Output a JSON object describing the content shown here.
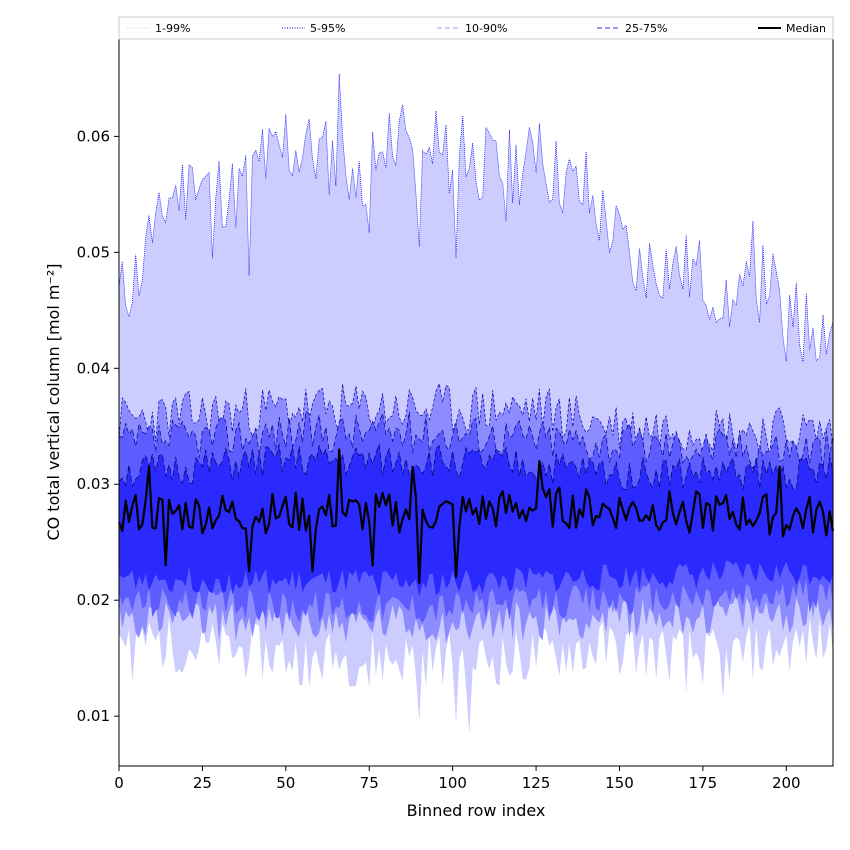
{
  "chart_data": {
    "type": "area",
    "title": "",
    "xlabel": "Binned row index",
    "ylabel": "CO total vertical column [mol m⁻²]",
    "xlim": [
      0,
      214
    ],
    "ylim": [
      0.0057,
      0.0684
    ],
    "xticks": [
      0,
      25,
      50,
      75,
      100,
      125,
      150,
      175,
      200
    ],
    "yticks": [
      0.01,
      0.02,
      0.03,
      0.04,
      0.05,
      0.06
    ],
    "ytick_labels": [
      "0.01",
      "0.02",
      "0.03",
      "0.04",
      "0.05",
      "0.06"
    ],
    "grid": false,
    "legend_position": "top",
    "legend": [
      {
        "label": "1-99%",
        "style": "dotted",
        "color": "#ccccff"
      },
      {
        "label": "5-95%",
        "style": "dotted",
        "color": "#0000aa"
      },
      {
        "label": "10-90%",
        "style": "dashed",
        "color": "#9999ff"
      },
      {
        "label": "25-75%",
        "style": "dashed",
        "color": "#3333cc"
      },
      {
        "label": "Median",
        "style": "solid",
        "color": "#000000"
      }
    ],
    "bands": [
      {
        "name": "1-99%",
        "fill": "#ccccff",
        "edge": "#0000ff",
        "edge_dash": "1,1",
        "profile": [
          [
            0,
            0.046
          ],
          [
            10,
            0.05
          ],
          [
            15,
            0.055
          ],
          [
            25,
            0.056
          ],
          [
            35,
            0.055
          ],
          [
            45,
            0.058
          ],
          [
            55,
            0.059
          ],
          [
            65,
            0.058
          ],
          [
            75,
            0.057
          ],
          [
            85,
            0.058
          ],
          [
            95,
            0.058
          ],
          [
            105,
            0.058
          ],
          [
            115,
            0.057
          ],
          [
            125,
            0.058
          ],
          [
            135,
            0.056
          ],
          [
            145,
            0.053
          ],
          [
            155,
            0.049
          ],
          [
            165,
            0.049
          ],
          [
            175,
            0.048
          ],
          [
            185,
            0.045
          ],
          [
            195,
            0.048
          ],
          [
            200,
            0.043
          ],
          [
            214,
            0.044
          ]
        ],
        "lower": [
          [
            0,
            0.017
          ],
          [
            20,
            0.016
          ],
          [
            40,
            0.0155
          ],
          [
            60,
            0.015
          ],
          [
            80,
            0.015
          ],
          [
            100,
            0.015
          ],
          [
            120,
            0.015
          ],
          [
            140,
            0.016
          ],
          [
            160,
            0.0155
          ],
          [
            180,
            0.015
          ],
          [
            200,
            0.016
          ],
          [
            214,
            0.0165
          ]
        ],
        "amp": [
          0.0035,
          0.0025
        ],
        "seed": 11
      },
      {
        "name": "5-95%",
        "fill": "#8c8cff",
        "edge": "#0000aa",
        "edge_dash": "3,2",
        "profile": [
          [
            0,
            0.0355
          ],
          [
            50,
            0.0365
          ],
          [
            100,
            0.0365
          ],
          [
            125,
            0.0365
          ],
          [
            150,
            0.035
          ],
          [
            214,
            0.0345
          ]
        ],
        "lower": [
          [
            0,
            0.0185
          ],
          [
            50,
            0.018
          ],
          [
            100,
            0.018
          ],
          [
            150,
            0.0185
          ],
          [
            214,
            0.019
          ]
        ],
        "amp": [
          0.0022,
          0.0018
        ],
        "seed": 23
      },
      {
        "name": "10-90%",
        "fill": "#5c5cff",
        "edge": "#000088",
        "edge_dash": "5,3",
        "profile": [
          [
            0,
            0.0335
          ],
          [
            50,
            0.0345
          ],
          [
            100,
            0.0345
          ],
          [
            150,
            0.0335
          ],
          [
            214,
            0.033
          ]
        ],
        "lower": [
          [
            0,
            0.02
          ],
          [
            50,
            0.0195
          ],
          [
            100,
            0.0195
          ],
          [
            150,
            0.02
          ],
          [
            214,
            0.0205
          ]
        ],
        "amp": [
          0.0018,
          0.0015
        ],
        "seed": 37
      },
      {
        "name": "25-75%",
        "fill": "#2a2aff",
        "edge": "#000066",
        "edge_dash": "6,3",
        "profile": [
          [
            0,
            0.031
          ],
          [
            50,
            0.032
          ],
          [
            100,
            0.032
          ],
          [
            150,
            0.031
          ],
          [
            214,
            0.031
          ]
        ],
        "lower": [
          [
            0,
            0.022
          ],
          [
            50,
            0.0215
          ],
          [
            100,
            0.0215
          ],
          [
            150,
            0.022
          ],
          [
            214,
            0.0225
          ]
        ],
        "amp": [
          0.0015,
          0.0012
        ],
        "seed": 51
      }
    ],
    "median": {
      "name": "Median",
      "color": "#000000",
      "profile": [
        [
          0,
          0.0275
        ],
        [
          50,
          0.0275
        ],
        [
          100,
          0.0275
        ],
        [
          125,
          0.028
        ],
        [
          150,
          0.0278
        ],
        [
          214,
          0.0272
        ]
      ],
      "amp": 0.0018,
      "seed": 77,
      "spikes": [
        [
          9,
          0.0315
        ],
        [
          14,
          0.023
        ],
        [
          39,
          0.0225
        ],
        [
          58,
          0.0225
        ],
        [
          66,
          0.033
        ],
        [
          76,
          0.023
        ],
        [
          88,
          0.0315
        ],
        [
          90,
          0.0215
        ],
        [
          101,
          0.022
        ],
        [
          126,
          0.032
        ],
        [
          198,
          0.0315
        ],
        [
          199,
          0.0255
        ]
      ]
    },
    "highlight_spikes": {
      "upper_99": [
        [
          9,
          0.0532
        ],
        [
          22,
          0.0573
        ],
        [
          28,
          0.0495
        ],
        [
          39,
          0.048
        ],
        [
          43,
          0.0606
        ],
        [
          50,
          0.0619
        ],
        [
          56,
          0.0602
        ],
        [
          66,
          0.0654
        ],
        [
          71,
          0.0547
        ],
        [
          75,
          0.0517
        ],
        [
          81,
          0.062
        ],
        [
          85,
          0.0627
        ],
        [
          90,
          0.0505
        ],
        [
          95,
          0.0622
        ],
        [
          101,
          0.0495
        ],
        [
          103,
          0.0618
        ],
        [
          116,
          0.0527
        ],
        [
          126,
          0.0611
        ],
        [
          140,
          0.0587
        ],
        [
          155,
          0.0467
        ],
        [
          167,
          0.0505
        ],
        [
          180,
          0.0443
        ],
        [
          183,
          0.0436
        ],
        [
          190,
          0.0527
        ],
        [
          200,
          0.0406
        ],
        [
          203,
          0.0474
        ],
        [
          208,
          0.0435
        ],
        [
          211,
          0.0446
        ]
      ],
      "lower_1": [
        [
          4,
          0.013
        ],
        [
          39,
          0.015
        ],
        [
          57,
          0.0125
        ],
        [
          66,
          0.014
        ],
        [
          75,
          0.0125
        ],
        [
          90,
          0.0095
        ],
        [
          101,
          0.0092
        ],
        [
          105,
          0.0085
        ],
        [
          117,
          0.0135
        ],
        [
          139,
          0.014
        ],
        [
          150,
          0.0135
        ],
        [
          170,
          0.012
        ],
        [
          181,
          0.0115
        ]
      ]
    }
  }
}
